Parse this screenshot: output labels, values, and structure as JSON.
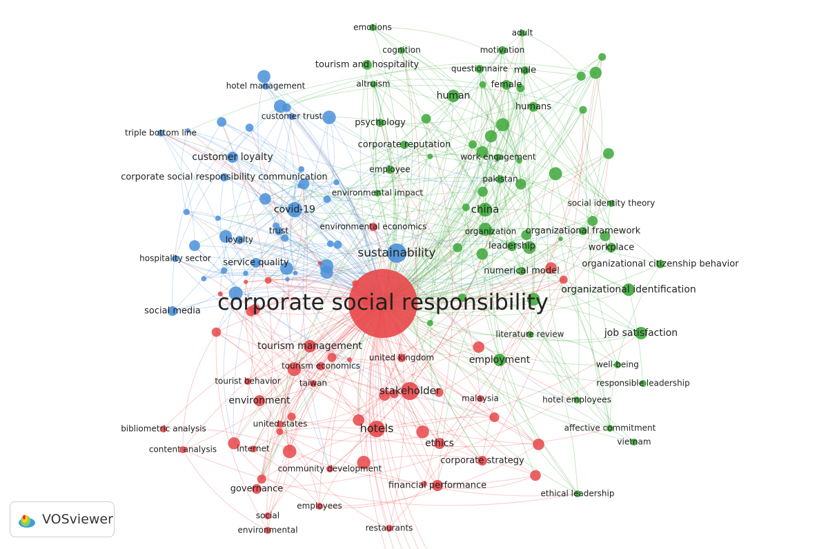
{
  "clusters": [
    {
      "color": "#e8474a"
    },
    {
      "color": "#3ea83a"
    },
    {
      "color": "#4a90d9"
    }
  ],
  "nodes": [
    {
      "label": "emotions",
      "cluster": 1
    },
    {
      "label": "adult",
      "cluster": 1
    },
    {
      "label": "cognition",
      "cluster": 1
    },
    {
      "label": "motivation",
      "cluster": 1
    },
    {
      "label": "tourism and hospitality",
      "cluster": 1
    },
    {
      "label": "questionnaire",
      "cluster": 1
    },
    {
      "label": "male",
      "cluster": 1
    },
    {
      "label": "altruism",
      "cluster": 1
    },
    {
      "label": "female",
      "cluster": 1
    },
    {
      "label": "human",
      "cluster": 1
    },
    {
      "label": "humans",
      "cluster": 1
    },
    {
      "label": "psychology",
      "cluster": 1
    },
    {
      "label": "corporate reputation",
      "cluster": 1
    },
    {
      "label": "work engagement",
      "cluster": 1
    },
    {
      "label": "employee",
      "cluster": 1
    },
    {
      "label": "pakistan",
      "cluster": 1
    },
    {
      "label": "environmental impact",
      "cluster": 1
    },
    {
      "label": "china",
      "cluster": 1
    },
    {
      "label": "social identity theory",
      "cluster": 1
    },
    {
      "label": "organization",
      "cluster": 1
    },
    {
      "label": "organizational framework",
      "cluster": 1
    },
    {
      "label": "leadership",
      "cluster": 1
    },
    {
      "label": "workplace",
      "cluster": 1
    },
    {
      "label": "organizational citizenship behavior",
      "cluster": 1
    },
    {
      "label": "numerical model",
      "cluster": 1
    },
    {
      "label": "organizational identification",
      "cluster": 1
    },
    {
      "label": "literature review",
      "cluster": 1
    },
    {
      "label": "job satisfaction",
      "cluster": 1
    },
    {
      "label": "employment",
      "cluster": 1
    },
    {
      "label": "well-being",
      "cluster": 1
    },
    {
      "label": "responsible leadership",
      "cluster": 1
    },
    {
      "label": "hotel employees",
      "cluster": 1
    },
    {
      "label": "affective commitment",
      "cluster": 1
    },
    {
      "label": "vietnam",
      "cluster": 1
    },
    {
      "label": "ethical leadership",
      "cluster": 1
    },
    {
      "label": "hotel management",
      "cluster": 2
    },
    {
      "label": "customer trust",
      "cluster": 2
    },
    {
      "label": "triple bottom line",
      "cluster": 2
    },
    {
      "label": "customer loyalty",
      "cluster": 2
    },
    {
      "label": "corporate social responsibility communication",
      "cluster": 2
    },
    {
      "label": "covid-19",
      "cluster": 2
    },
    {
      "label": "trust",
      "cluster": 2
    },
    {
      "label": "loyalty",
      "cluster": 2
    },
    {
      "label": "hospitality sector",
      "cluster": 2
    },
    {
      "label": "service quality",
      "cluster": 2
    },
    {
      "label": "social media",
      "cluster": 2
    },
    {
      "label": "sustainability",
      "cluster": 2
    },
    {
      "label": "environmental economics",
      "cluster": 0
    },
    {
      "label": "corporate social responsibility",
      "cluster": 0
    },
    {
      "label": "tourism management",
      "cluster": 0
    },
    {
      "label": "tourism economics",
      "cluster": 0
    },
    {
      "label": "united kingdom",
      "cluster": 0
    },
    {
      "label": "tourist behavior",
      "cluster": 0
    },
    {
      "label": "taiwan",
      "cluster": 0
    },
    {
      "label": "stakeholder",
      "cluster": 0
    },
    {
      "label": "environment",
      "cluster": 0
    },
    {
      "label": "malaysia",
      "cluster": 0
    },
    {
      "label": "united states",
      "cluster": 0
    },
    {
      "label": "bibliometric analysis",
      "cluster": 0
    },
    {
      "label": "hotels",
      "cluster": 0
    },
    {
      "label": "ethics",
      "cluster": 0
    },
    {
      "label": "content analysis",
      "cluster": 0
    },
    {
      "label": "internet",
      "cluster": 0
    },
    {
      "label": "corporate strategy",
      "cluster": 0
    },
    {
      "label": "community development",
      "cluster": 0
    },
    {
      "label": "financial performance",
      "cluster": 0
    },
    {
      "label": "governance",
      "cluster": 0
    },
    {
      "label": "employees",
      "cluster": 0
    },
    {
      "label": "social",
      "cluster": 0
    },
    {
      "label": "environmental",
      "cluster": 0
    },
    {
      "label": "restaurants",
      "cluster": 0
    }
  ],
  "logo": {
    "text": "VOSviewer"
  }
}
